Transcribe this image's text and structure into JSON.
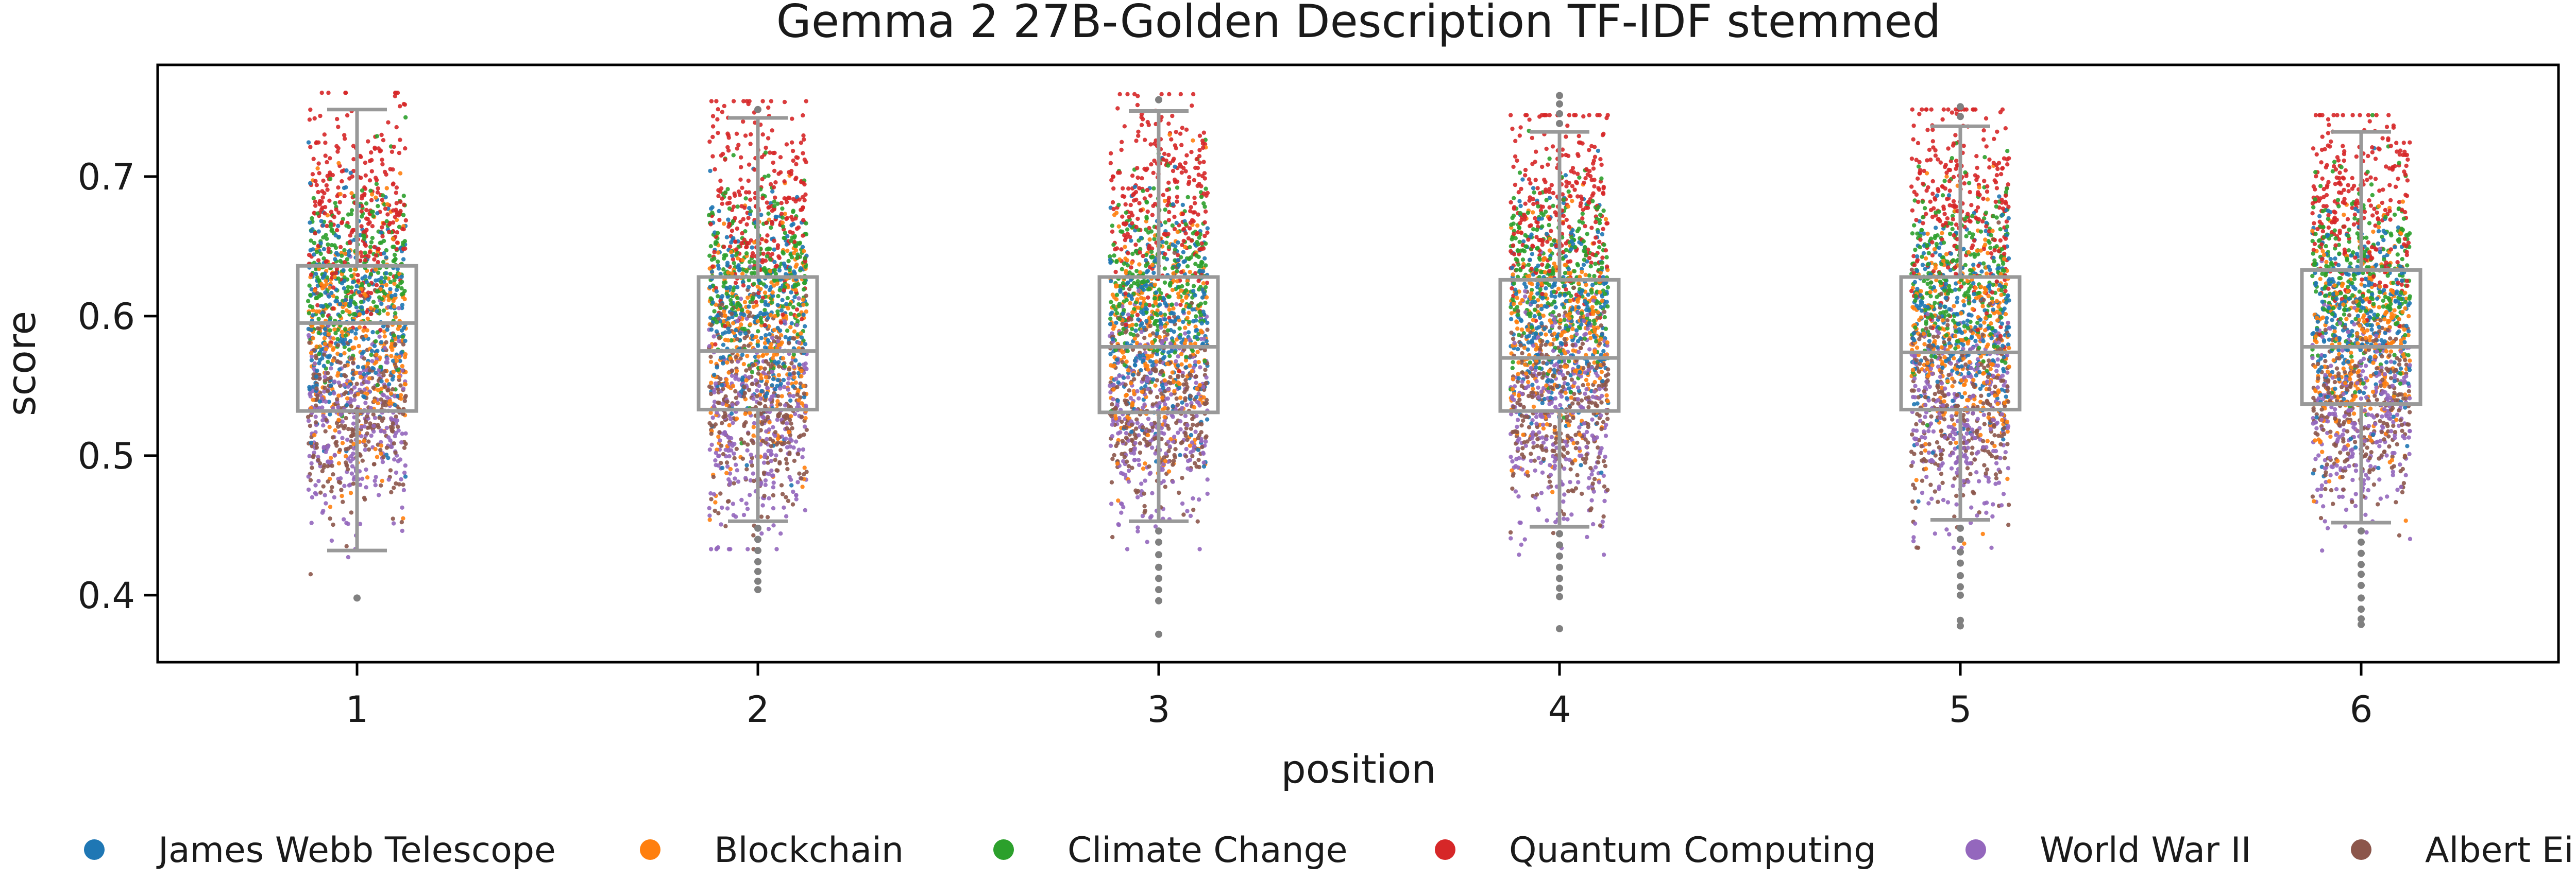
{
  "chart_data": {
    "type": "scatter",
    "subtype": "strip plot with box plot overlay",
    "title": "Gemma 2 27B-Golden Description TF-IDF stemmed",
    "xlabel": "position",
    "ylabel": "score",
    "categories": [
      "1",
      "2",
      "3",
      "4",
      "5",
      "6"
    ],
    "ylim": [
      0.352,
      0.78
    ],
    "y_ticks": [
      0.4,
      0.5,
      0.6,
      0.7
    ],
    "y_tick_labels": [
      "0.4",
      "0.5",
      "0.6",
      "0.7"
    ],
    "grid": false,
    "legend_position": "bottom",
    "series": [
      {
        "name": "James Webb Telescope",
        "color": "#1f77b4",
        "center": 0.6,
        "spread": 0.04
      },
      {
        "name": "Blockchain",
        "color": "#ff7f0e",
        "center": 0.585,
        "spread": 0.045
      },
      {
        "name": "Climate Change",
        "color": "#2ca02c",
        "center": 0.63,
        "spread": 0.035
      },
      {
        "name": "Quantum Computing",
        "color": "#d62728",
        "center": 0.68,
        "spread": 0.04
      },
      {
        "name": "World War II",
        "color": "#9467bd",
        "center": 0.525,
        "spread": 0.04
      },
      {
        "name": "Albert Einstein",
        "color": "#8c564b",
        "center": 0.535,
        "spread": 0.035
      }
    ],
    "boxplots": [
      {
        "position": "1",
        "whisker_low": 0.432,
        "q1": 0.532,
        "median": 0.595,
        "q3": 0.636,
        "whisker_high": 0.748,
        "outliers": [
          0.398
        ]
      },
      {
        "position": "2",
        "whisker_low": 0.453,
        "q1": 0.533,
        "median": 0.575,
        "q3": 0.628,
        "whisker_high": 0.742,
        "outliers": [
          0.448,
          0.44,
          0.432,
          0.424,
          0.417,
          0.41,
          0.404,
          0.748
        ]
      },
      {
        "position": "3",
        "whisker_low": 0.453,
        "q1": 0.531,
        "median": 0.578,
        "q3": 0.628,
        "whisker_high": 0.747,
        "outliers": [
          0.446,
          0.438,
          0.429,
          0.42,
          0.412,
          0.404,
          0.396,
          0.372,
          0.755
        ]
      },
      {
        "position": "4",
        "whisker_low": 0.449,
        "q1": 0.532,
        "median": 0.57,
        "q3": 0.626,
        "whisker_high": 0.732,
        "outliers": [
          0.444,
          0.436,
          0.428,
          0.42,
          0.412,
          0.405,
          0.399,
          0.376,
          0.738,
          0.745,
          0.752,
          0.758
        ]
      },
      {
        "position": "5",
        "whisker_low": 0.454,
        "q1": 0.533,
        "median": 0.574,
        "q3": 0.628,
        "whisker_high": 0.736,
        "outliers": [
          0.448,
          0.44,
          0.431,
          0.423,
          0.414,
          0.406,
          0.4,
          0.382,
          0.378,
          0.743,
          0.75
        ]
      },
      {
        "position": "6",
        "whisker_low": 0.452,
        "q1": 0.537,
        "median": 0.578,
        "q3": 0.633,
        "whisker_high": 0.732,
        "outliers": [
          0.446,
          0.438,
          0.43,
          0.422,
          0.415,
          0.407,
          0.398,
          0.39,
          0.383,
          0.379
        ]
      }
    ],
    "box_color": "#999999",
    "points_per_series_per_position": 280
  }
}
